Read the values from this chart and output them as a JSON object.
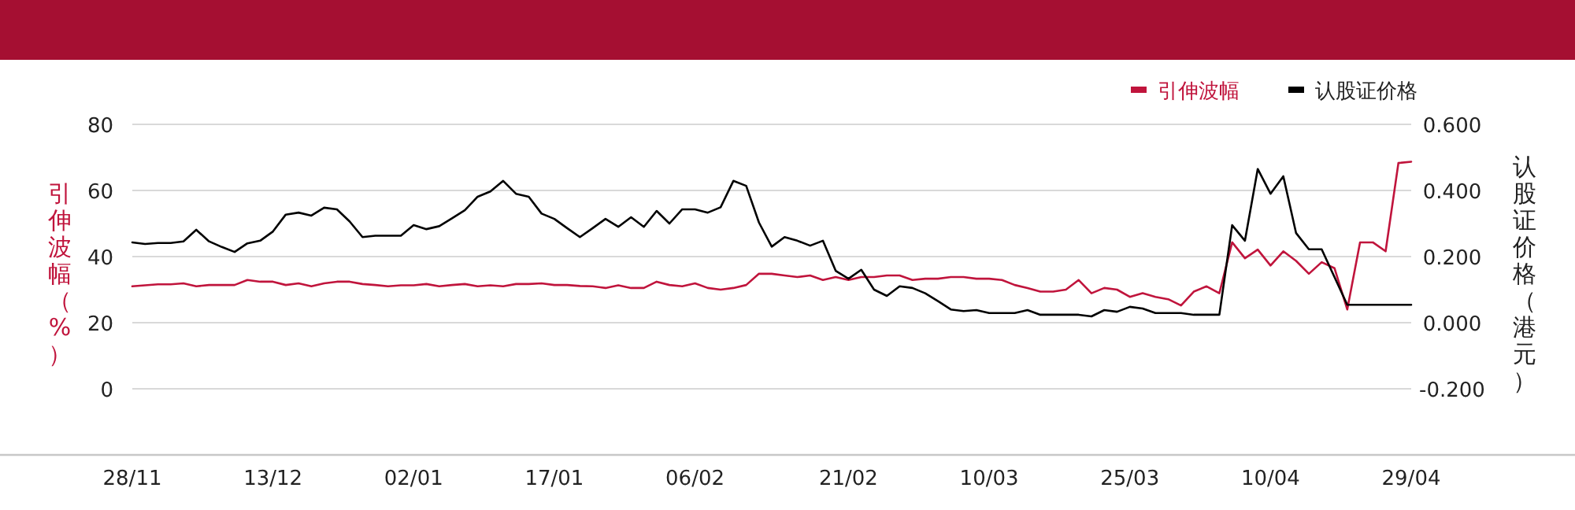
{
  "chart_data": {
    "type": "line",
    "ylabel": "引伸波幅（%）",
    "y2label": "认股证价格（港元）",
    "categories": [
      "28/11",
      null,
      null,
      null,
      null,
      null,
      null,
      null,
      null,
      null,
      null,
      "13/12",
      null,
      null,
      null,
      null,
      null,
      null,
      null,
      null,
      null,
      null,
      "02/01",
      null,
      null,
      null,
      null,
      null,
      null,
      null,
      null,
      null,
      null,
      "17/01",
      null,
      null,
      null,
      null,
      null,
      null,
      null,
      null,
      null,
      null,
      "06/02",
      null,
      null,
      null,
      null,
      null,
      null,
      null,
      null,
      null,
      null,
      null,
      "21/02",
      null,
      null,
      null,
      null,
      null,
      null,
      null,
      null,
      null,
      null,
      "10/03",
      null,
      null,
      null,
      null,
      null,
      null,
      null,
      null,
      null,
      null,
      "25/03",
      null,
      null,
      null,
      null,
      null,
      null,
      null,
      null,
      null,
      null,
      "10/04",
      null,
      null,
      null,
      null,
      null,
      null,
      null,
      null,
      null,
      null,
      "29/04"
    ],
    "series": [
      {
        "name": "引伸波幅",
        "color": "#c0143c",
        "values": [
          31.0,
          31.3,
          31.6,
          31.6,
          31.9,
          31.0,
          31.4,
          31.4,
          31.4,
          32.9,
          32.4,
          32.4,
          31.4,
          31.9,
          31.0,
          31.9,
          32.4,
          32.4,
          31.7,
          31.4,
          31.0,
          31.3,
          31.3,
          31.7,
          31.0,
          31.4,
          31.7,
          31.0,
          31.3,
          31.0,
          31.7,
          31.7,
          31.9,
          31.4,
          31.4,
          31.1,
          31.0,
          30.5,
          31.3,
          30.5,
          30.5,
          32.4,
          31.4,
          31.0,
          31.9,
          30.5,
          30.0,
          30.5,
          31.4,
          34.8,
          34.8,
          34.3,
          33.8,
          34.3,
          32.9,
          33.8,
          32.9,
          33.8,
          33.8,
          34.3,
          34.3,
          32.9,
          33.3,
          33.3,
          33.8,
          33.8,
          33.3,
          33.3,
          32.9,
          31.4,
          30.5,
          29.4,
          29.4,
          30.0,
          32.9,
          28.9,
          30.5,
          30.0,
          27.8,
          28.9,
          27.8,
          27.1,
          25.2,
          29.4,
          31.0,
          28.9,
          44.3,
          39.5,
          42.1,
          37.3,
          41.6,
          38.7,
          34.8,
          38.3,
          36.5,
          24.0,
          44.3,
          44.3,
          41.6,
          68.3,
          68.7
        ]
      },
      {
        "name": "认股证价格",
        "color": "#000000",
        "axis": "y2",
        "values": [
          0.243,
          0.238,
          0.241,
          0.241,
          0.246,
          0.281,
          0.246,
          0.229,
          0.214,
          0.24,
          0.248,
          0.276,
          0.327,
          0.333,
          0.324,
          0.348,
          0.343,
          0.306,
          0.259,
          0.263,
          0.263,
          0.263,
          0.295,
          0.283,
          0.292,
          0.316,
          0.34,
          0.381,
          0.397,
          0.429,
          0.39,
          0.381,
          0.33,
          0.314,
          0.286,
          0.259,
          0.286,
          0.314,
          0.29,
          0.319,
          0.29,
          0.338,
          0.3,
          0.343,
          0.343,
          0.333,
          0.349,
          0.429,
          0.414,
          0.303,
          0.23,
          0.259,
          0.248,
          0.233,
          0.248,
          0.157,
          0.133,
          0.16,
          0.1,
          0.081,
          0.11,
          0.105,
          0.089,
          0.065,
          0.04,
          0.035,
          0.038,
          0.029,
          0.029,
          0.029,
          0.038,
          0.024,
          0.024,
          0.024,
          0.024,
          0.019,
          0.038,
          0.033,
          0.048,
          0.043,
          0.029,
          0.029,
          0.029,
          0.024,
          0.024,
          0.024,
          0.295,
          0.248,
          0.465,
          0.39,
          0.443,
          0.271,
          0.222,
          0.222,
          0.138,
          0.054,
          0.054,
          0.054,
          0.054,
          0.054,
          0.054
        ]
      }
    ],
    "ylim": [
      -20,
      80
    ],
    "yticks": [
      0,
      20,
      40,
      60,
      80
    ],
    "y2lim": [
      -0.4,
      0.6
    ],
    "y2ticks": [
      {
        "value": 0.6,
        "label": "0.600"
      },
      {
        "value": 0.4,
        "label": "0.400"
      },
      {
        "value": 0.2,
        "label": "0.200"
      },
      {
        "value": 0,
        "label": "0.000"
      },
      {
        "value": -0.2,
        "label": "-0.200"
      }
    ],
    "grid": "y",
    "legend": "top right",
    "line_style": "solid",
    "marker": "none"
  }
}
